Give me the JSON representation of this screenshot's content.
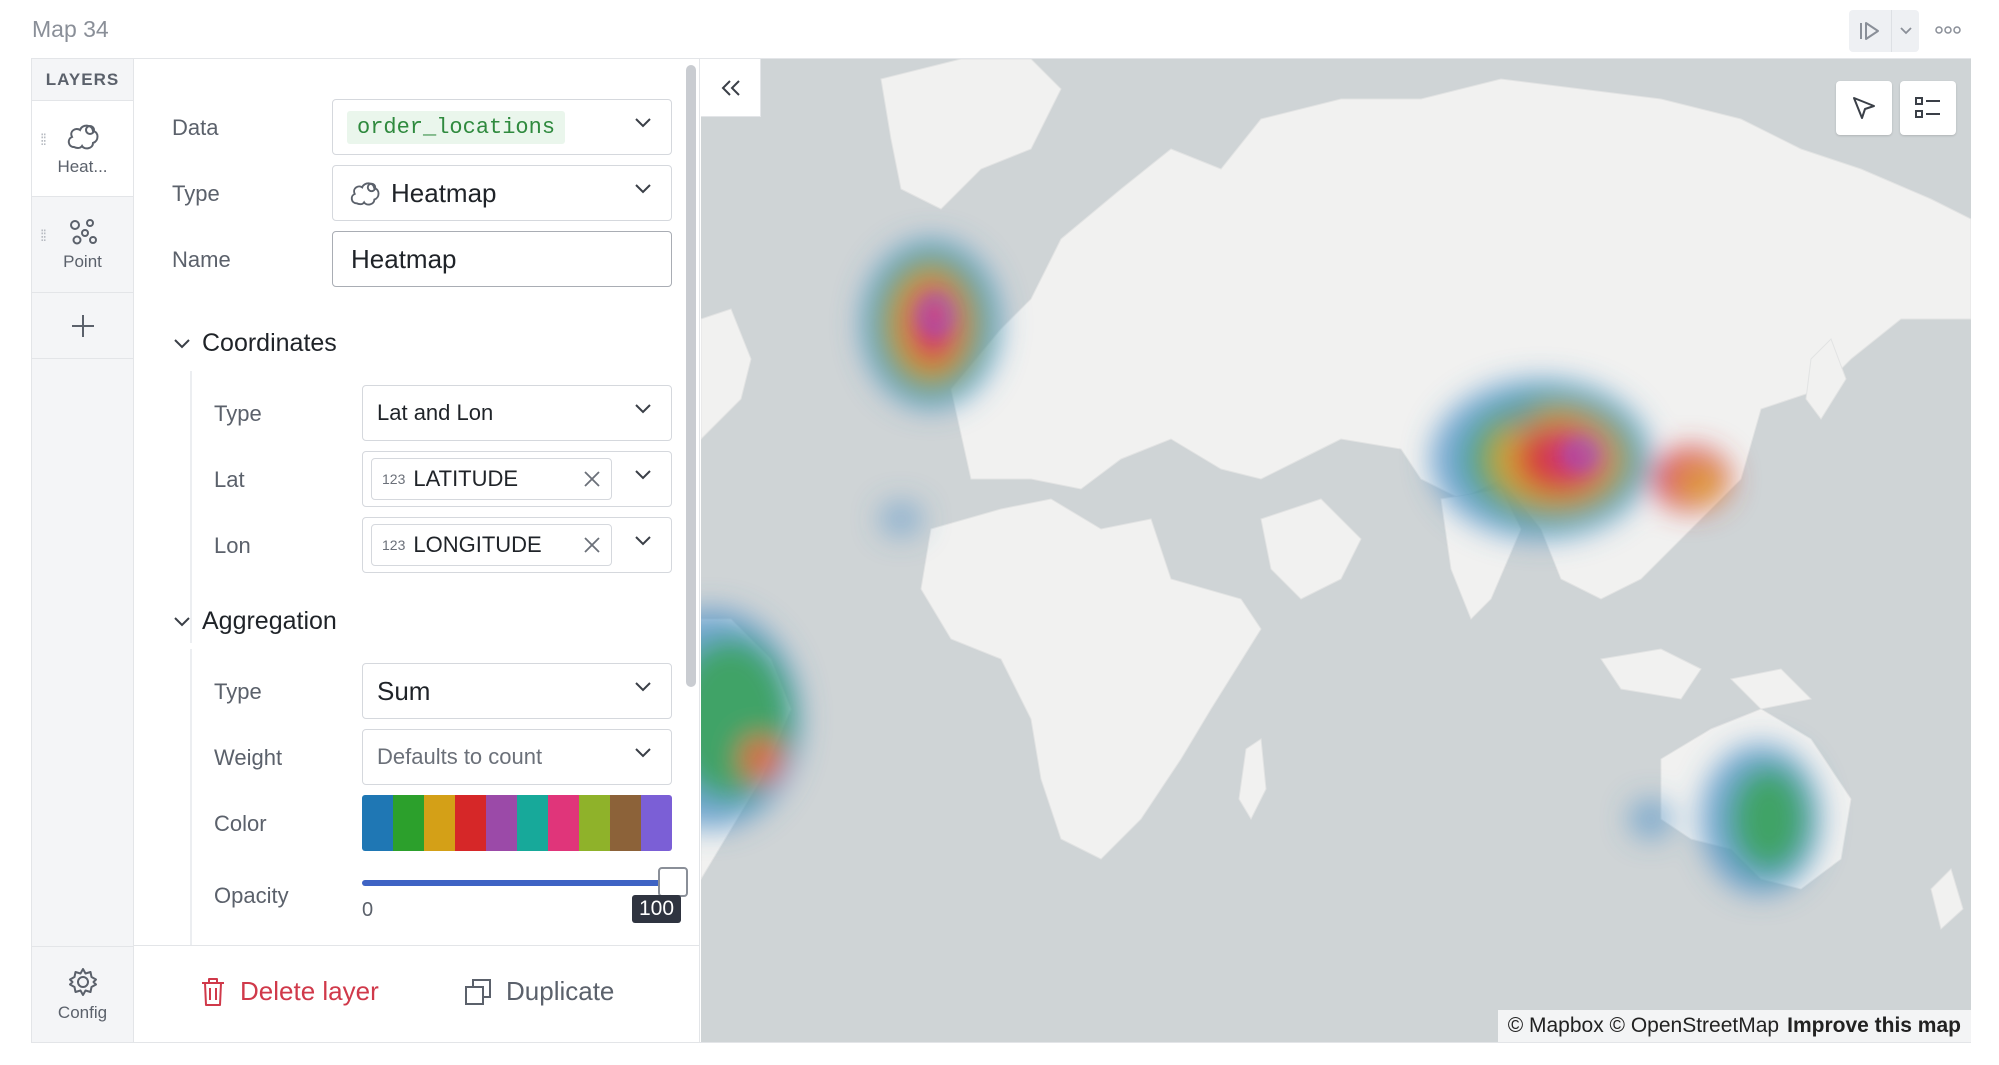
{
  "cell": {
    "title": "Map 34"
  },
  "layers": {
    "header": "LAYERS",
    "items": [
      {
        "label": "Heat...",
        "icon": "heatmap-icon"
      },
      {
        "label": "Point",
        "icon": "point-icon"
      }
    ],
    "config_label": "Config"
  },
  "form": {
    "data_label": "Data",
    "data_value": "order_locations",
    "type_label": "Type",
    "type_value": "Heatmap",
    "name_label": "Name",
    "name_value": "Heatmap",
    "coordinates": {
      "title": "Coordinates",
      "type_label": "Type",
      "type_value": "Lat and Lon",
      "lat_label": "Lat",
      "lat_num": "123",
      "lat_value": "LATITUDE",
      "lon_label": "Lon",
      "lon_num": "123",
      "lon_value": "LONGITUDE"
    },
    "aggregation": {
      "title": "Aggregation",
      "type_label": "Type",
      "type_value": "Sum",
      "weight_label": "Weight",
      "weight_placeholder": "Defaults to count",
      "color_label": "Color",
      "palette": [
        "#1f77b4",
        "#2ca02c",
        "#d4a017",
        "#d62728",
        "#9b4aa8",
        "#17a99a",
        "#e0357a",
        "#8fb22a",
        "#8c6239",
        "#7b5fd6"
      ],
      "opacity_label": "Opacity",
      "opacity_min": "0",
      "opacity_value": "100"
    }
  },
  "footer": {
    "delete_label": "Delete layer",
    "duplicate_label": "Duplicate"
  },
  "map": {
    "attribution": "© Mapbox © OpenStreetMap",
    "improve_link": "Improve this map"
  }
}
